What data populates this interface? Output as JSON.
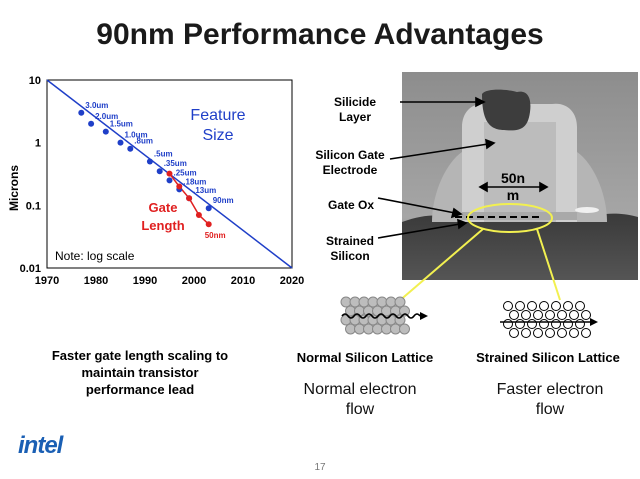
{
  "title": "90nm Performance Advantages",
  "chart_data": {
    "type": "scatter",
    "ylabel": "Microns",
    "yscale": "log",
    "ylim": [
      0.01,
      10
    ],
    "xlim": [
      1970,
      2020
    ],
    "x_ticks": [
      "1970",
      "1980",
      "1990",
      "2000",
      "2010",
      "2020"
    ],
    "y_ticks": [
      "10",
      "1",
      "0.1",
      "0.01"
    ],
    "note": "Note: log scale",
    "legend_feature": [
      "Feature",
      "Size"
    ],
    "legend_gate": [
      "Gate",
      "Length"
    ],
    "feature_series": {
      "color": "#1f3fc8",
      "points": [
        {
          "x": 1977,
          "y": 3.0,
          "label": "3.0um"
        },
        {
          "x": 1979,
          "y": 2.0,
          "label": "2.0um"
        },
        {
          "x": 1982,
          "y": 1.5,
          "label": "1.5um"
        },
        {
          "x": 1985,
          "y": 1.0,
          "label": "1.0um"
        },
        {
          "x": 1987,
          "y": 0.8,
          "label": ".8um"
        },
        {
          "x": 1991,
          "y": 0.5,
          "label": ".5um"
        },
        {
          "x": 1993,
          "y": 0.35,
          "label": ".35um"
        },
        {
          "x": 1995,
          "y": 0.25,
          "label": ".25um"
        },
        {
          "x": 1997,
          "y": 0.18,
          "label": ".18um"
        },
        {
          "x": 1999,
          "y": 0.13,
          "label": ".13um"
        },
        {
          "x": 2003,
          "y": 0.09,
          "label": "90nm"
        }
      ]
    },
    "gate_series": {
      "color": "#e02020",
      "points": [
        {
          "x": 1995,
          "y": 0.32
        },
        {
          "x": 1997,
          "y": 0.2
        },
        {
          "x": 1999,
          "y": 0.13
        },
        {
          "x": 2001,
          "y": 0.07
        },
        {
          "x": 2003,
          "y": 0.05,
          "label": "50nm"
        }
      ]
    },
    "trend_line": [
      {
        "x": 1970,
        "y": 10
      },
      {
        "x": 2020,
        "y": 0.01
      }
    ]
  },
  "photo_labels": {
    "silicide": [
      "Silicide",
      "Layer"
    ],
    "gate_electrode": [
      "Silicon Gate",
      "Electrode"
    ],
    "gate_ox": "Gate Ox",
    "strained": [
      "Strained",
      "Silicon"
    ],
    "scale": [
      "50n",
      "m"
    ]
  },
  "captions": {
    "left": [
      "Faster gate length scaling to",
      "maintain transistor",
      "performance lead"
    ],
    "normal_lattice": "Normal Silicon Lattice",
    "strained_lattice": "Strained Silicon Lattice",
    "normal_flow": [
      "Normal electron",
      "flow"
    ],
    "faster_flow": [
      "Faster electron",
      "flow"
    ]
  },
  "logo": "intel",
  "page_number": "17",
  "colors": {
    "feature": "#1f3fc8",
    "gate": "#e02020",
    "highlight": "#f2f050"
  }
}
